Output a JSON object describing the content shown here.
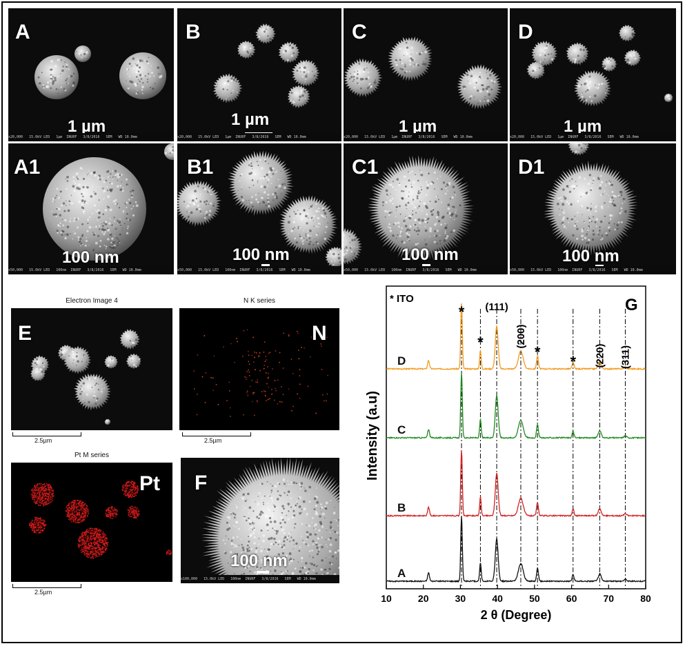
{
  "sem_panels": [
    {
      "label": "A",
      "scale": "1 µm",
      "info": "x20,000   15.0kV LED   1µm  INURF   3/8/2016   SEM   WD 10.0mm"
    },
    {
      "label": "B",
      "scale": "1 µm",
      "info": "x20,000   15.0kV LED   1µm  INURF   3/8/2016   SEM   WD 10.0mm"
    },
    {
      "label": "C",
      "scale": "1 µm",
      "info": "x20,000   15.0kV LED   1µm  INURF   3/8/2016   SEM   WD 10.0mm"
    },
    {
      "label": "D",
      "scale": "1 µm",
      "info": "x20,000   15.0kV LED   1µm  INURF   3/8/2016   SEM   WD 10.0mm"
    },
    {
      "label": "A1",
      "scale": "100 nm",
      "info": "x50,000   15.0kV LED   100nm  INURF   3/8/2016   SEM   WD 10.0mm"
    },
    {
      "label": "B1",
      "scale": "100 nm",
      "info": "x50,000   15.0kV LED   100nm  INURF   3/8/2016   SEM   WD 10.0mm"
    },
    {
      "label": "C1",
      "scale": "100 nm",
      "info": "x50,000   15.0kV LED   100nm  INURF   3/8/2016   SEM   WD 10.0mm"
    },
    {
      "label": "D1",
      "scale": "100 nm",
      "info": "x50,000   15.0kV LED   100nm  INURF   3/8/2016   SEM   WD 10.0mm"
    }
  ],
  "eds": {
    "electron_title": "Electron Image 4",
    "electron_label": "E",
    "n_title": "N K series",
    "n_label": "N",
    "pt_title": "Pt M series",
    "pt_label": "Pt",
    "f_label": "F",
    "f_scale": "100 nm",
    "f_info": "x100,000   15.0kV LED   100nm  INURF   3/8/2016   SEM   WD 10.0mm",
    "micron_bar": "2.5µm",
    "colors": {
      "n_map": "#e0481a",
      "pt_map": "#d81b1b"
    }
  },
  "chart_data": {
    "type": "line",
    "panel_label": "G",
    "legend_note": "* ITO",
    "xlabel": "2 θ (Degree)",
    "ylabel": "Intensity (a.u)",
    "xlim": [
      10,
      80
    ],
    "x_ticks": [
      "10",
      "20",
      "30",
      "40",
      "50",
      "60",
      "70",
      "80"
    ],
    "series": [
      {
        "name": "D",
        "color": "#f29a1e",
        "offset": 3
      },
      {
        "name": "C",
        "color": "#1f8a1f",
        "offset": 2
      },
      {
        "name": "B",
        "color": "#d42020",
        "offset": 1
      },
      {
        "name": "A",
        "color": "#111111",
        "offset": 0
      }
    ],
    "peaks": [
      {
        "x": 21.4,
        "h": 0.13,
        "w": 0.35
      },
      {
        "x": 30.3,
        "h": 1.0,
        "w": 0.3
      },
      {
        "x": 35.4,
        "h": 0.28,
        "w": 0.3
      },
      {
        "x": 39.8,
        "h": 0.65,
        "w": 0.55
      },
      {
        "x": 46.3,
        "h": 0.27,
        "w": 0.9
      },
      {
        "x": 50.8,
        "h": 0.2,
        "w": 0.35
      },
      {
        "x": 60.4,
        "h": 0.1,
        "w": 0.35
      },
      {
        "x": 67.6,
        "h": 0.11,
        "w": 0.55
      },
      {
        "x": 74.5,
        "h": 0.03,
        "w": 0.5
      }
    ],
    "reference_lines": [
      30.3,
      35.4,
      39.8,
      46.3,
      50.8,
      60.4,
      67.6,
      74.5
    ],
    "annotations": [
      {
        "text": "*",
        "x": 30.3
      },
      {
        "text": "*",
        "x": 35.4
      },
      {
        "text": "(111)",
        "x": 39.8
      },
      {
        "text": "(200)",
        "x": 46.3,
        "rotated": true
      },
      {
        "text": "*",
        "x": 50.8
      },
      {
        "text": "*",
        "x": 60.4
      },
      {
        "text": "(220)",
        "x": 67.6,
        "rotated": true
      },
      {
        "text": "(311)",
        "x": 74.5,
        "rotated": true
      }
    ]
  }
}
